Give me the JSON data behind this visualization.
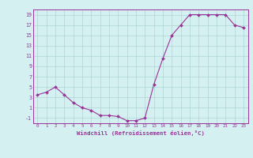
{
  "xlabel": "Windchill (Refroidissement éolien,°C)",
  "hours": [
    0,
    1,
    2,
    3,
    4,
    5,
    6,
    7,
    8,
    9,
    10,
    11,
    12,
    13,
    14,
    15,
    16,
    17,
    18,
    19,
    20,
    21,
    22,
    23
  ],
  "values": [
    3.5,
    4.0,
    5.0,
    3.5,
    2.0,
    1.0,
    0.5,
    -0.5,
    -0.5,
    -0.7,
    -1.5,
    -1.5,
    -1.0,
    5.5,
    10.5,
    15.0,
    17.0,
    19.0,
    19.0,
    19.0,
    19.0,
    19.0,
    17.0,
    16.5
  ],
  "line_color": "#993399",
  "marker_color": "#993399",
  "bg_color": "#d4f0f0",
  "grid_color": "#aed4d4",
  "axis_color": "#993399",
  "tick_color": "#993399",
  "ylim": [
    -2,
    20
  ],
  "yticks": [
    -1,
    1,
    3,
    5,
    7,
    9,
    11,
    13,
    15,
    17,
    19
  ],
  "xticks": [
    0,
    1,
    2,
    3,
    4,
    5,
    6,
    7,
    8,
    9,
    10,
    11,
    12,
    13,
    14,
    15,
    16,
    17,
    18,
    19,
    20,
    21,
    22,
    23
  ],
  "fig_width": 3.2,
  "fig_height": 2.0,
  "dpi": 100
}
